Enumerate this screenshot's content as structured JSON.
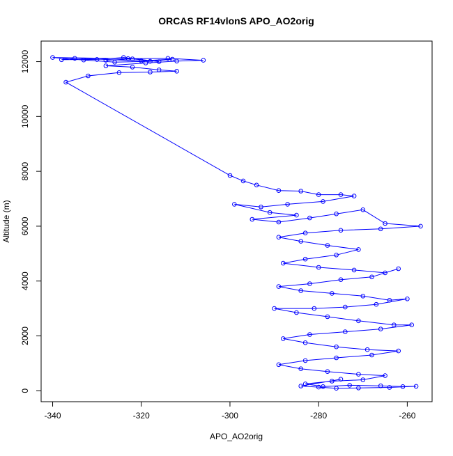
{
  "chart_data": {
    "type": "scatter",
    "title": "ORCAS RF14vlonS APO_AO2orig",
    "xlabel": "APO_AO2orig",
    "ylabel": "Altitude (m)",
    "xlim": [
      -342.6,
      -254.4
    ],
    "ylim": [
      -400,
      12750
    ],
    "xticks": [
      -340,
      -320,
      -300,
      -280,
      -260
    ],
    "yticks": [
      0,
      2000,
      4000,
      6000,
      8000,
      10000,
      12000
    ],
    "marker": "open-circle",
    "connect_points": true,
    "color": "#0000ff",
    "series": [
      {
        "values": [
          [
            -328,
            12050
          ],
          [
            -322,
            12100
          ],
          [
            -316,
            12000
          ],
          [
            -324,
            12150
          ],
          [
            -330,
            12080
          ],
          [
            -338,
            12070
          ],
          [
            -335,
            12120
          ],
          [
            -320,
            12030
          ],
          [
            -313,
            12090
          ],
          [
            -318,
            12010
          ],
          [
            -326,
            11980
          ],
          [
            -333,
            12060
          ],
          [
            -340,
            12150
          ],
          [
            -323,
            12110
          ],
          [
            -314,
            12120
          ],
          [
            -306,
            12050
          ],
          [
            -312,
            12020
          ],
          [
            -319,
            11950
          ],
          [
            -328,
            11850
          ],
          [
            -322,
            11800
          ],
          [
            -316,
            11700
          ],
          [
            -312,
            11650
          ],
          [
            -318,
            11620
          ],
          [
            -325,
            11600
          ],
          [
            -332,
            11480
          ],
          [
            -337,
            11250
          ],
          [
            -300,
            7850
          ],
          [
            -297,
            7650
          ],
          [
            -294,
            7500
          ],
          [
            -289,
            7300
          ],
          [
            -284,
            7280
          ],
          [
            -280,
            7150
          ],
          [
            -275,
            7150
          ],
          [
            -272,
            7100
          ],
          [
            -279,
            6900
          ],
          [
            -287,
            6800
          ],
          [
            -293,
            6700
          ],
          [
            -299,
            6800
          ],
          [
            -291,
            6500
          ],
          [
            -285,
            6400
          ],
          [
            -295,
            6250
          ],
          [
            -289,
            6150
          ],
          [
            -282,
            6300
          ],
          [
            -276,
            6450
          ],
          [
            -270,
            6600
          ],
          [
            -265,
            6100
          ],
          [
            -257,
            6000
          ],
          [
            -266,
            5900
          ],
          [
            -275,
            5850
          ],
          [
            -283,
            5750
          ],
          [
            -289,
            5600
          ],
          [
            -284,
            5450
          ],
          [
            -278,
            5300
          ],
          [
            -271,
            5150
          ],
          [
            -276,
            4950
          ],
          [
            -283,
            4800
          ],
          [
            -288,
            4650
          ],
          [
            -280,
            4500
          ],
          [
            -272,
            4400
          ],
          [
            -265,
            4300
          ],
          [
            -262,
            4450
          ],
          [
            -268,
            4150
          ],
          [
            -275,
            4050
          ],
          [
            -282,
            3900
          ],
          [
            -289,
            3800
          ],
          [
            -284,
            3650
          ],
          [
            -277,
            3550
          ],
          [
            -270,
            3450
          ],
          [
            -264,
            3300
          ],
          [
            -260,
            3350
          ],
          [
            -267,
            3150
          ],
          [
            -274,
            3050
          ],
          [
            -281,
            3000
          ],
          [
            -290,
            3000
          ],
          [
            -285,
            2850
          ],
          [
            -278,
            2700
          ],
          [
            -271,
            2550
          ],
          [
            -263,
            2400
          ],
          [
            -259,
            2400
          ],
          [
            -266,
            2250
          ],
          [
            -274,
            2150
          ],
          [
            -282,
            2050
          ],
          [
            -288,
            1900
          ],
          [
            -283,
            1750
          ],
          [
            -276,
            1600
          ],
          [
            -269,
            1500
          ],
          [
            -262,
            1450
          ],
          [
            -268,
            1300
          ],
          [
            -276,
            1200
          ],
          [
            -283,
            1100
          ],
          [
            -289,
            950
          ],
          [
            -284,
            800
          ],
          [
            -278,
            700
          ],
          [
            -271,
            600
          ],
          [
            -265,
            550
          ],
          [
            -270,
            400
          ],
          [
            -277,
            350
          ],
          [
            -283,
            250
          ],
          [
            -279,
            150
          ],
          [
            -273,
            200
          ],
          [
            -266,
            180
          ],
          [
            -261,
            150
          ],
          [
            -258,
            160
          ],
          [
            -264,
            120
          ],
          [
            -271,
            100
          ],
          [
            -276,
            90
          ],
          [
            -280,
            130
          ],
          [
            -284,
            170
          ],
          [
            -275,
            420
          ]
        ]
      }
    ]
  }
}
